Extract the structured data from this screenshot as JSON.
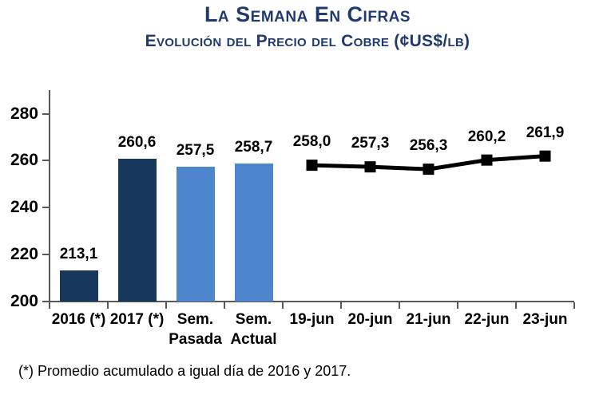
{
  "page": {
    "title": "La Semana En Cifras",
    "subtitle": "Evolución del Precio del Cobre (¢US$/lb)",
    "footnote": "(*) Promedio acumulado a igual día de 2016 y 2017."
  },
  "colors": {
    "title_navy": "#203A70",
    "bar_dark": "#17375D",
    "bar_light": "#4E86CE",
    "line": "#000000",
    "axis": "#595959",
    "text": "#000000"
  },
  "chart_data": {
    "type": "bar+line",
    "title": "La Semana En Cifras",
    "subtitle": "Evolución del Precio del Cobre (¢US$/lb)",
    "unit": "¢US$/lb",
    "grid": false,
    "legend": false,
    "y_axis": {
      "min": 200,
      "max_tick": 280,
      "axis_top_value": 290,
      "tick_step": 20,
      "ticks": [
        200,
        220,
        240,
        260,
        280
      ]
    },
    "categories": [
      "2016 (*)",
      "2017 (*)",
      "Sem.\nPasada",
      "Sem.\nActual",
      "19-jun",
      "20-jun",
      "21-jun",
      "22-jun",
      "23-jun"
    ],
    "series": [
      {
        "name": "promedios y semanas",
        "type": "bar",
        "values": [
          213.1,
          260.6,
          257.5,
          258.7,
          null,
          null,
          null,
          null,
          null
        ],
        "labels": [
          "213,1",
          "260,6",
          "257,5",
          "258,7",
          null,
          null,
          null,
          null,
          null
        ],
        "bar_color_keys": [
          "bar_dark",
          "bar_dark",
          "bar_light",
          "bar_light",
          null,
          null,
          null,
          null,
          null
        ]
      },
      {
        "name": "precio diario",
        "type": "line",
        "values": [
          null,
          null,
          null,
          null,
          258.0,
          257.3,
          256.3,
          260.2,
          261.9
        ],
        "labels": [
          null,
          null,
          null,
          null,
          "258,0",
          "257,3",
          "256,3",
          "260,2",
          "261,9"
        ]
      }
    ]
  }
}
